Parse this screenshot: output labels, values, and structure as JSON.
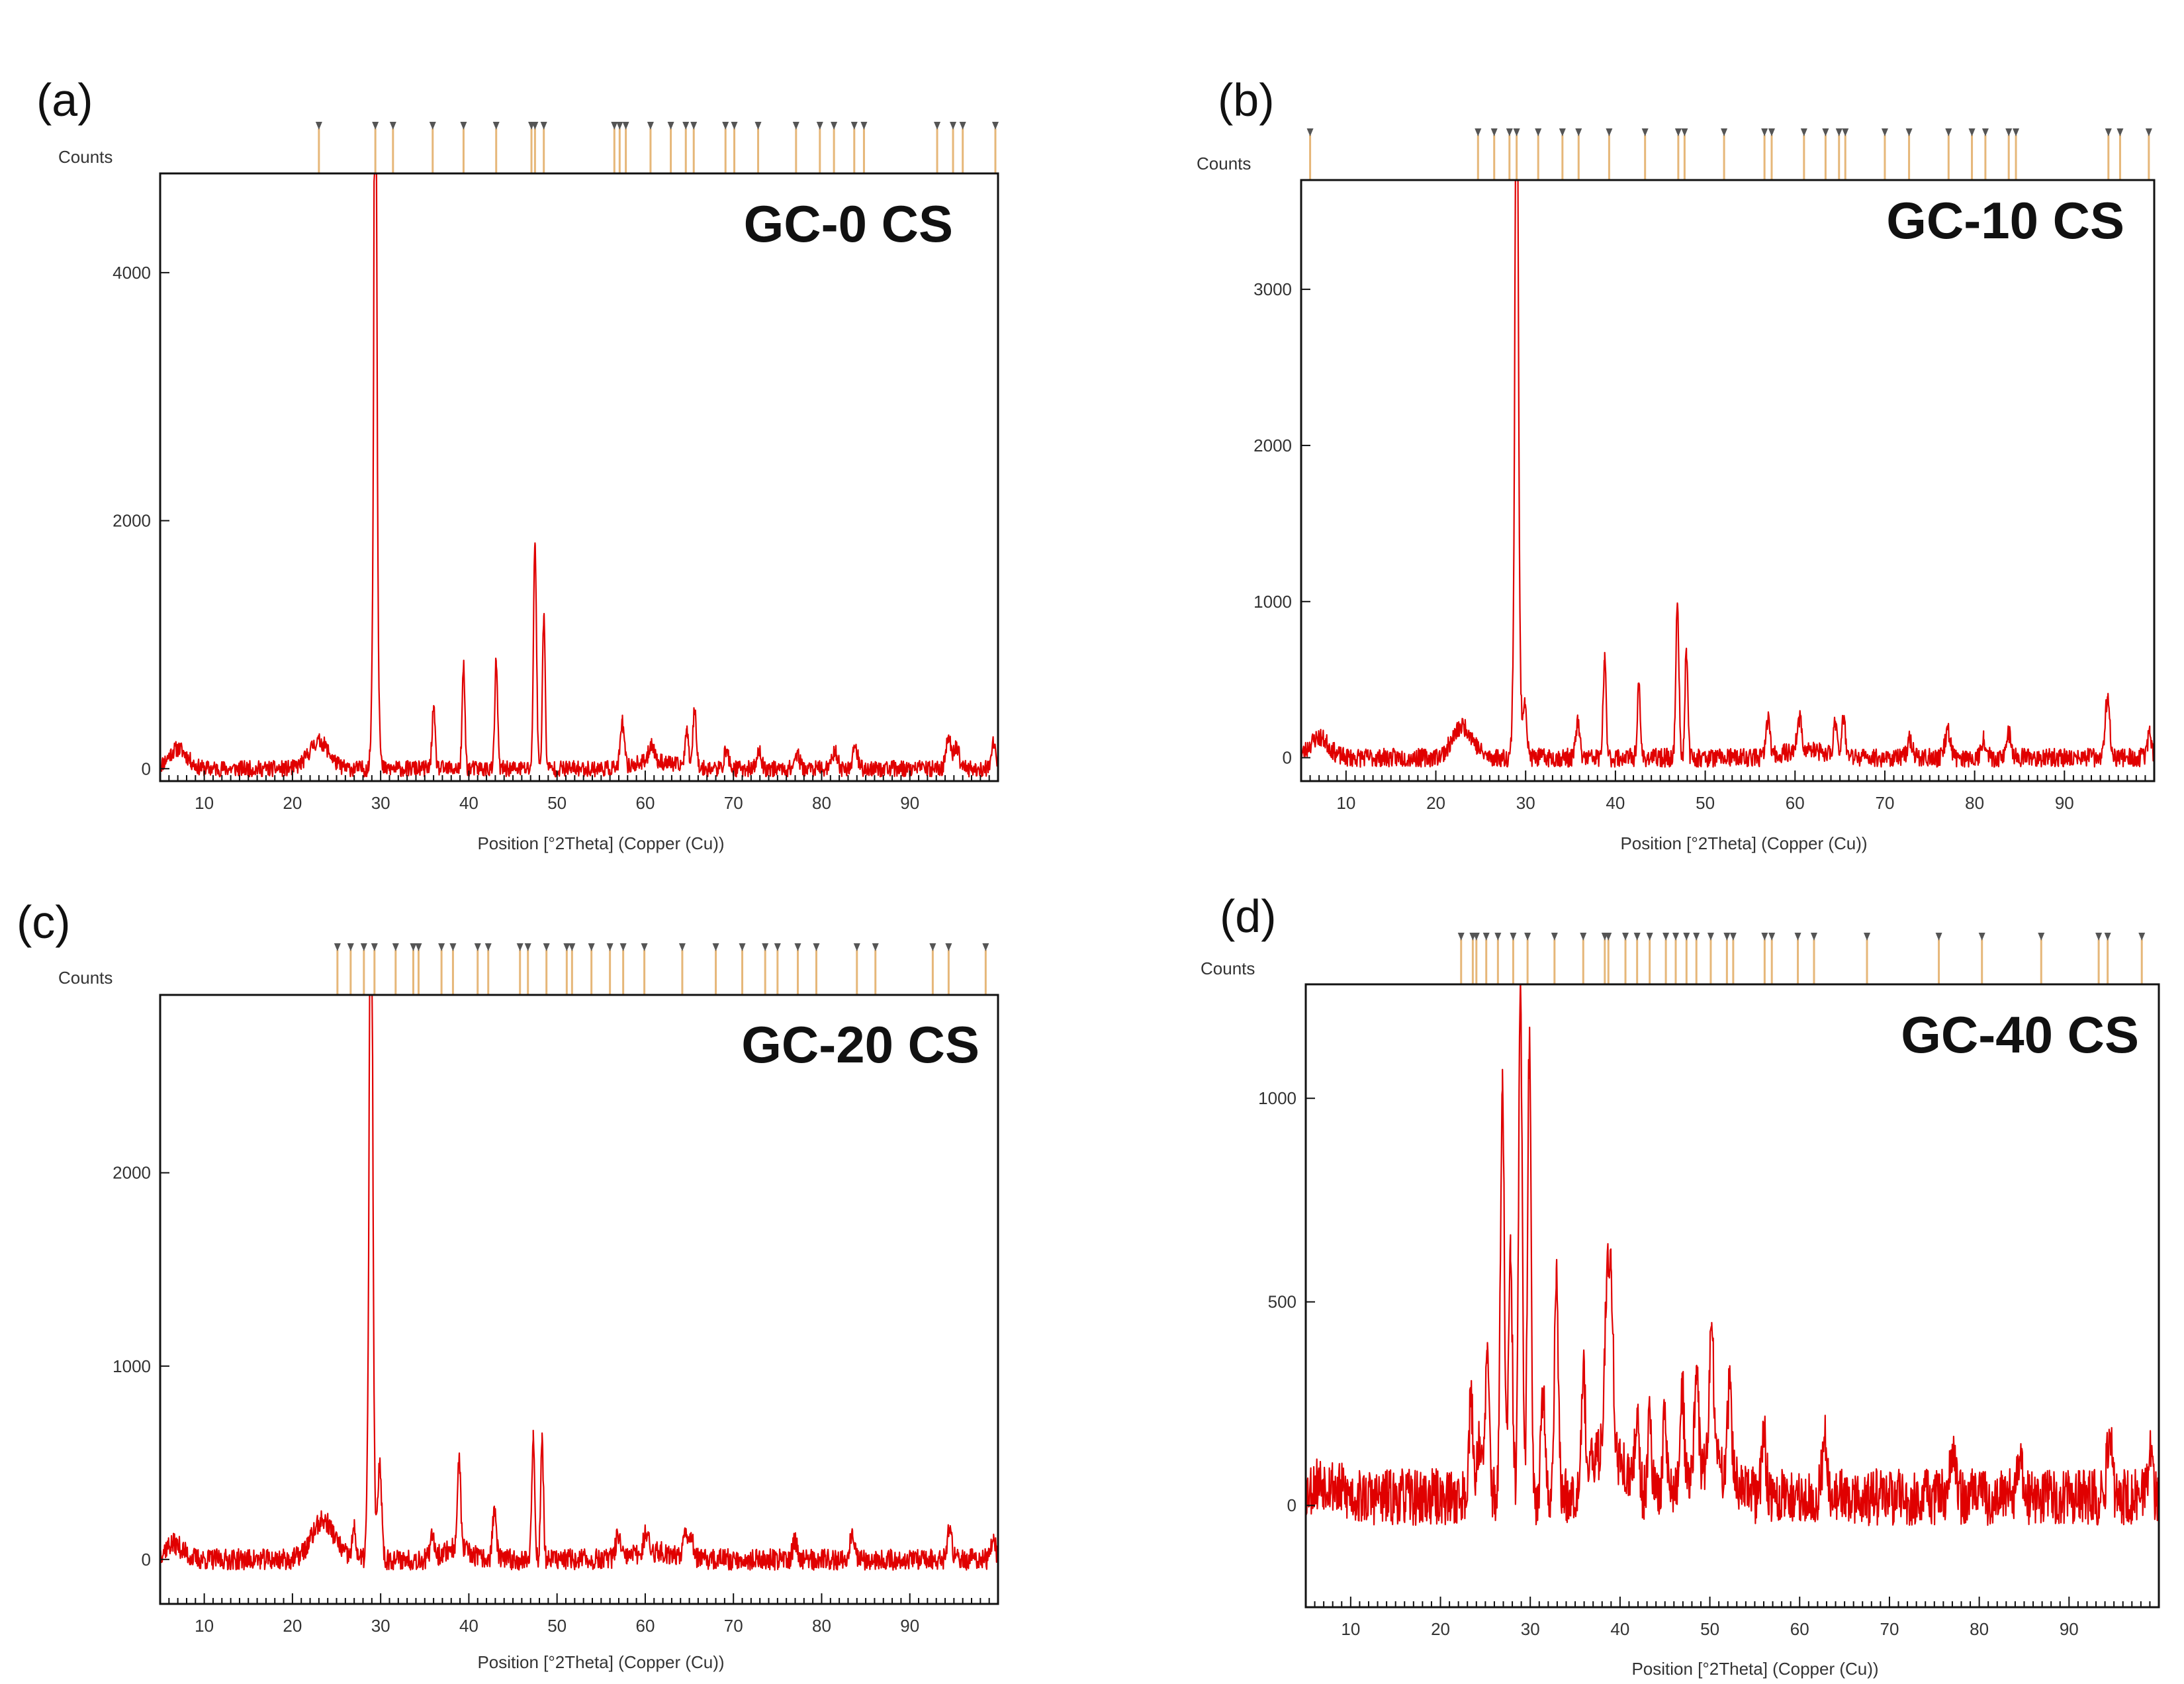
{
  "figure": {
    "xlabel": "Position [°2Theta] (Copper (Cu))",
    "ylabel": "Counts",
    "line_color": "#e00000",
    "stick_color": "#e6b779",
    "stick_head_color": "#555555",
    "frame_color": "#111111"
  },
  "chart_data": [
    {
      "type": "line",
      "panel": "(a)",
      "title": "GC-0 CS",
      "xlabel": "Position [°2Theta] (Copper (Cu))",
      "ylabel": "Counts",
      "xlim": [
        5,
        100
      ],
      "ylim": [
        -100,
        4800
      ],
      "xticks": [
        10,
        20,
        30,
        40,
        50,
        60,
        70,
        80,
        90
      ],
      "yticks": [
        0,
        2000,
        4000
      ],
      "baseline": 0,
      "noise": 65,
      "seed": 11,
      "humps": [
        [
          7,
          160,
          1.5
        ],
        [
          23,
          220,
          1.6
        ],
        [
          61,
          60,
          3.0
        ]
      ],
      "peaks": [
        [
          29.4,
          4720,
          0.18
        ],
        [
          29.4,
          2750,
          0.35
        ],
        [
          36.0,
          470,
          0.25
        ],
        [
          39.4,
          820,
          0.22
        ],
        [
          43.1,
          870,
          0.22
        ],
        [
          47.5,
          1820,
          0.24
        ],
        [
          48.5,
          1230,
          0.22
        ],
        [
          57.4,
          360,
          0.3
        ],
        [
          60.7,
          150,
          0.4
        ],
        [
          64.7,
          280,
          0.3
        ],
        [
          65.6,
          460,
          0.3
        ],
        [
          69.2,
          150,
          0.35
        ],
        [
          72.9,
          140,
          0.35
        ],
        [
          77.2,
          120,
          0.4
        ],
        [
          81.5,
          150,
          0.4
        ],
        [
          83.8,
          180,
          0.4
        ],
        [
          94.4,
          270,
          0.4
        ],
        [
          95.3,
          180,
          0.4
        ],
        [
          99.5,
          200,
          0.3
        ]
      ],
      "reference_positions": [
        23.0,
        29.4,
        31.4,
        35.9,
        39.4,
        43.1,
        47.1,
        47.5,
        48.5,
        56.5,
        57.1,
        57.8,
        60.6,
        62.9,
        64.6,
        65.5,
        69.1,
        70.1,
        72.8,
        77.1,
        79.8,
        81.4,
        83.7,
        84.8,
        93.1,
        94.9,
        96.0,
        99.7
      ]
    },
    {
      "type": "line",
      "panel": "(b)",
      "title": "GC-10 CS",
      "xlabel": "Position [°2Theta] (Copper (Cu))",
      "ylabel": "Counts",
      "xlim": [
        5,
        100
      ],
      "ylim": [
        -150,
        3700
      ],
      "xticks": [
        10,
        20,
        30,
        40,
        50,
        60,
        70,
        80,
        90
      ],
      "yticks": [
        0,
        1000,
        2000,
        3000
      ],
      "baseline": 0,
      "noise": 60,
      "seed": 23,
      "humps": [
        [
          7,
          130,
          1.5
        ],
        [
          23,
          200,
          1.6
        ],
        [
          61,
          50,
          3.0
        ]
      ],
      "peaks": [
        [
          29.0,
          3580,
          0.18
        ],
        [
          29.0,
          2550,
          0.35
        ],
        [
          29.9,
          380,
          0.3
        ],
        [
          35.8,
          230,
          0.3
        ],
        [
          38.8,
          620,
          0.24
        ],
        [
          42.6,
          440,
          0.24
        ],
        [
          46.9,
          990,
          0.24
        ],
        [
          47.9,
          700,
          0.22
        ],
        [
          57.0,
          250,
          0.3
        ],
        [
          60.5,
          200,
          0.35
        ],
        [
          64.5,
          220,
          0.3
        ],
        [
          65.4,
          250,
          0.3
        ],
        [
          72.8,
          120,
          0.4
        ],
        [
          77.0,
          180,
          0.4
        ],
        [
          81.0,
          120,
          0.4
        ],
        [
          83.8,
          150,
          0.4
        ],
        [
          94.8,
          390,
          0.35
        ],
        [
          99.5,
          160,
          0.3
        ]
      ],
      "reference_positions": [
        6.0,
        24.7,
        26.5,
        28.2,
        29.0,
        31.4,
        34.1,
        35.9,
        39.3,
        43.3,
        47.0,
        47.7,
        52.1,
        56.6,
        57.4,
        61.0,
        63.4,
        64.9,
        65.6,
        70.0,
        72.7,
        77.1,
        79.7,
        81.2,
        83.8,
        84.6,
        94.9,
        96.2,
        99.4
      ]
    },
    {
      "type": "line",
      "panel": "(c)",
      "title": "GC-20 CS",
      "xlabel": "Position [°2Theta] (Copper (Cu))",
      "ylabel": "Counts",
      "xlim": [
        5,
        100
      ],
      "ylim": [
        -230,
        2920
      ],
      "xticks": [
        10,
        20,
        30,
        40,
        50,
        60,
        70,
        80,
        90
      ],
      "yticks": [
        0,
        1000,
        2000
      ],
      "baseline": 0,
      "noise": 55,
      "seed": 37,
      "humps": [
        [
          6.5,
          80,
          1.5
        ],
        [
          23.5,
          200,
          1.8
        ],
        [
          38.5,
          60,
          2.0
        ],
        [
          61,
          40,
          3.0
        ]
      ],
      "peaks": [
        [
          28.9,
          2870,
          0.18
        ],
        [
          28.9,
          2200,
          0.35
        ],
        [
          29.9,
          500,
          0.3
        ],
        [
          27.0,
          150,
          0.3
        ],
        [
          35.9,
          120,
          0.3
        ],
        [
          38.9,
          480,
          0.24
        ],
        [
          42.9,
          260,
          0.3
        ],
        [
          47.3,
          620,
          0.24
        ],
        [
          48.3,
          610,
          0.22
        ],
        [
          56.9,
          120,
          0.35
        ],
        [
          60.1,
          100,
          0.4
        ],
        [
          64.5,
          150,
          0.35
        ],
        [
          65.2,
          130,
          0.35
        ],
        [
          77.0,
          90,
          0.4
        ],
        [
          83.5,
          150,
          0.4
        ],
        [
          94.5,
          150,
          0.35
        ],
        [
          99.5,
          130,
          0.3
        ]
      ],
      "reference_positions": [
        25.1,
        26.6,
        28.1,
        29.3,
        31.7,
        33.7,
        34.3,
        36.9,
        38.2,
        41.0,
        42.2,
        45.8,
        46.7,
        48.8,
        51.1,
        51.7,
        53.9,
        56.0,
        57.5,
        59.9,
        64.2,
        68.0,
        71.0,
        73.6,
        75.0,
        77.3,
        79.4,
        84.0,
        86.1,
        92.6,
        94.4,
        98.6
      ]
    },
    {
      "type": "line",
      "panel": "(d)",
      "title": "GC-40 CS",
      "xlabel": "Position [°2Theta] (Copper (Cu))",
      "ylabel": "Counts",
      "xlim": [
        5,
        100
      ],
      "ylim": [
        -250,
        1280
      ],
      "xticks": [
        10,
        20,
        30,
        40,
        50,
        60,
        70,
        80,
        90
      ],
      "yticks": [
        0,
        500,
        1000
      ],
      "baseline": 20,
      "noise": 70,
      "seed": 53,
      "humps": [
        [
          7,
          40,
          2.0
        ],
        [
          38.5,
          120,
          2.5
        ],
        [
          50,
          80,
          3.0
        ]
      ],
      "peaks": [
        [
          23.4,
          230,
          0.35
        ],
        [
          24.3,
          150,
          0.3
        ],
        [
          25.2,
          330,
          0.35
        ],
        [
          26.9,
          1000,
          0.3
        ],
        [
          27.8,
          580,
          0.3
        ],
        [
          28.9,
          1260,
          0.28
        ],
        [
          29.9,
          1110,
          0.28
        ],
        [
          31.4,
          260,
          0.3
        ],
        [
          32.9,
          560,
          0.3
        ],
        [
          35.9,
          280,
          0.3
        ],
        [
          38.5,
          360,
          0.35
        ],
        [
          39.0,
          400,
          0.35
        ],
        [
          41.9,
          200,
          0.3
        ],
        [
          43.3,
          220,
          0.3
        ],
        [
          45.0,
          210,
          0.3
        ],
        [
          46.9,
          250,
          0.3
        ],
        [
          48.5,
          260,
          0.3
        ],
        [
          50.2,
          340,
          0.35
        ],
        [
          52.2,
          220,
          0.35
        ],
        [
          56.0,
          150,
          0.35
        ],
        [
          62.8,
          150,
          0.4
        ],
        [
          77.0,
          130,
          0.4
        ],
        [
          84.5,
          100,
          0.4
        ],
        [
          94.5,
          150,
          0.4
        ],
        [
          99.0,
          100,
          0.4
        ]
      ],
      "reference_positions": [
        22.3,
        23.6,
        24.0,
        25.1,
        26.4,
        28.1,
        29.7,
        32.7,
        35.9,
        38.3,
        38.7,
        40.6,
        41.9,
        43.3,
        45.1,
        46.2,
        47.4,
        48.5,
        50.1,
        51.9,
        52.6,
        56.1,
        56.9,
        59.8,
        61.6,
        67.5,
        75.5,
        80.3,
        86.9,
        93.3,
        94.3,
        98.1
      ]
    }
  ]
}
